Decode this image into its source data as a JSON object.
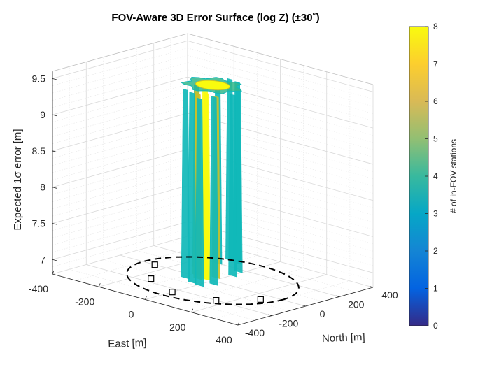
{
  "chart_data": {
    "type": "surface3d",
    "title": "FOV-Aware 3D Error Surface (log Z) (±30˚)",
    "xlabel": "East [m]",
    "ylabel": "North [m]",
    "zlabel": "Expected 1σ error [m]",
    "colorbar_label": "# of in-FOV stations",
    "xlim": [
      -400,
      400
    ],
    "ylim": [
      -400,
      400
    ],
    "zlim": [
      6.8,
      9.6
    ],
    "clim": [
      0,
      8
    ],
    "x_ticks": [
      "-400",
      "-200",
      "0",
      "200",
      "400"
    ],
    "y_ticks": [
      "-400",
      "-200",
      "0",
      "200",
      "400"
    ],
    "z_ticks": [
      "7",
      "7.5",
      "8",
      "8.5",
      "9",
      "9.5"
    ],
    "colorbar_ticks": [
      "0",
      "1",
      "2",
      "3",
      "4",
      "5",
      "6",
      "7",
      "8"
    ],
    "grid": true,
    "colormap": "parula",
    "colors": {
      "station_count_3": "#10b8b8",
      "station_count_4": "#32b78c",
      "station_count_6": "#c8c02a",
      "station_count_8": "#f9fb0e",
      "boundary": "#000000"
    },
    "fov_boundary_radius": 300,
    "stations": [
      {
        "east": -250,
        "north": 0
      },
      {
        "east": -150,
        "north": -160
      },
      {
        "east": 0,
        "north": -240
      },
      {
        "east": 160,
        "north": -200
      },
      {
        "east": 250,
        "north": -60
      }
    ]
  }
}
